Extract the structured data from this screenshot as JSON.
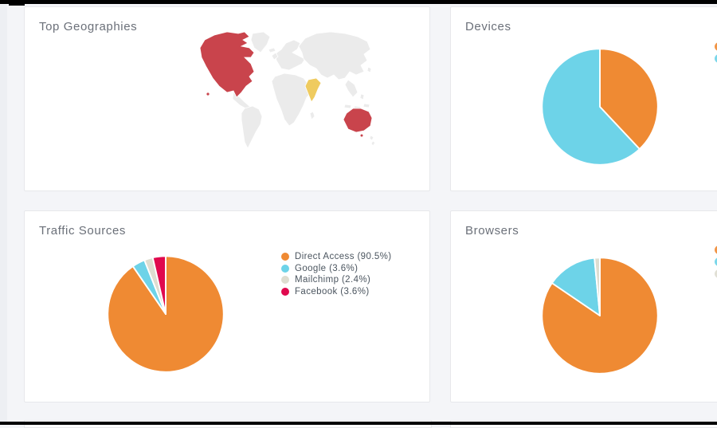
{
  "page": {
    "background": "#f4f5f8",
    "top_bar_color": "#000000",
    "bottom_bar_color": "#000000"
  },
  "cards": {
    "geographies": {
      "title": "Top Geographies"
    },
    "devices": {
      "title": "Devices"
    },
    "traffic": {
      "title": "Traffic Sources"
    },
    "browsers": {
      "title": "Browsers"
    }
  },
  "map": {
    "colors": {
      "red": "#c9444c",
      "yellow": "#efcb5f",
      "base": "#ebebeb",
      "border": "#ffffff"
    },
    "highlighted_regions": [
      {
        "name": "North America",
        "color": "#c9444c"
      },
      {
        "name": "Hawaii",
        "color": "#c9444c"
      },
      {
        "name": "Australia",
        "color": "#c9444c"
      },
      {
        "name": "India",
        "color": "#efcb5f"
      }
    ]
  },
  "chart_data": [
    {
      "id": "devices",
      "type": "pie",
      "title": "Devices",
      "legend_visible": false,
      "slices": [
        {
          "label": "",
          "pct": 38,
          "color": "#ef8a33"
        },
        {
          "label": "",
          "pct": 62,
          "color": "#6dd3e8"
        }
      ]
    },
    {
      "id": "traffic_sources",
      "type": "pie",
      "title": "Traffic Sources",
      "legend_visible": true,
      "legend_position": "right",
      "slices": [
        {
          "label": "Direct Access",
          "pct": 90.5,
          "color": "#ef8a33"
        },
        {
          "label": "Google",
          "pct": 3.6,
          "color": "#6dd3e8"
        },
        {
          "label": "Mailchimp",
          "pct": 2.4,
          "color": "#deddd0"
        },
        {
          "label": "Facebook",
          "pct": 3.6,
          "color": "#e0094e"
        }
      ]
    },
    {
      "id": "browsers",
      "type": "pie",
      "title": "Browsers",
      "legend_visible": false,
      "slices": [
        {
          "label": "",
          "pct": 84.5,
          "color": "#ef8a33"
        },
        {
          "label": "",
          "pct": 14,
          "color": "#6dd3e8"
        },
        {
          "label": "",
          "pct": 1.5,
          "color": "#deddd0"
        }
      ]
    }
  ]
}
